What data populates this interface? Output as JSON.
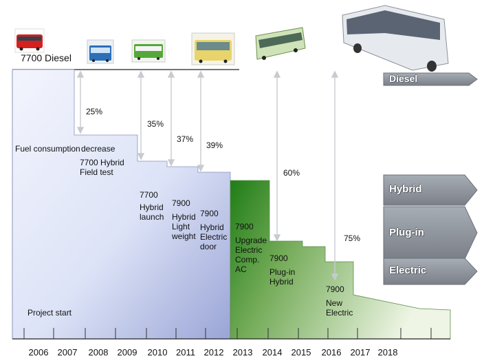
{
  "header": {
    "diesel_label": "7700 Diesel"
  },
  "milestones": {
    "fuel_text": "Fuel consumption",
    "decrease_text": "decrease",
    "hybrid_field": [
      "7700 Hybrid",
      "Field test"
    ],
    "hybrid_launch": [
      "7700",
      "Hybrid",
      "launch"
    ],
    "hybrid_light": [
      "7900",
      "Hybrid",
      "Light",
      "weight"
    ],
    "hybrid_door": [
      "7900",
      "Hybrid",
      "Electric",
      "door"
    ],
    "upgrade": [
      "7900",
      "Upgrade",
      "Electric",
      "Comp.",
      "AC"
    ],
    "plugin": [
      "7900",
      "Plug-in",
      "Hybrid"
    ],
    "new_electric": [
      "7900",
      "New",
      "Electric"
    ],
    "project_start": "Project start"
  },
  "reductions": [
    "25%",
    "35%",
    "37%",
    "39%",
    "60%",
    "75%"
  ],
  "years": [
    "2006",
    "2007",
    "2008",
    "2009",
    "2010",
    "2011",
    "2012",
    "2013",
    "2014",
    "2015",
    "2016",
    "2017",
    "2018"
  ],
  "legend": [
    "Diesel",
    "Hybrid",
    "Plug-in",
    "Electric"
  ],
  "colors": {
    "blue_region": "#c4cdee",
    "green_region": "#2f8a22",
    "arrow": "#c7cbd0",
    "legend_box": "#8b9099"
  }
}
